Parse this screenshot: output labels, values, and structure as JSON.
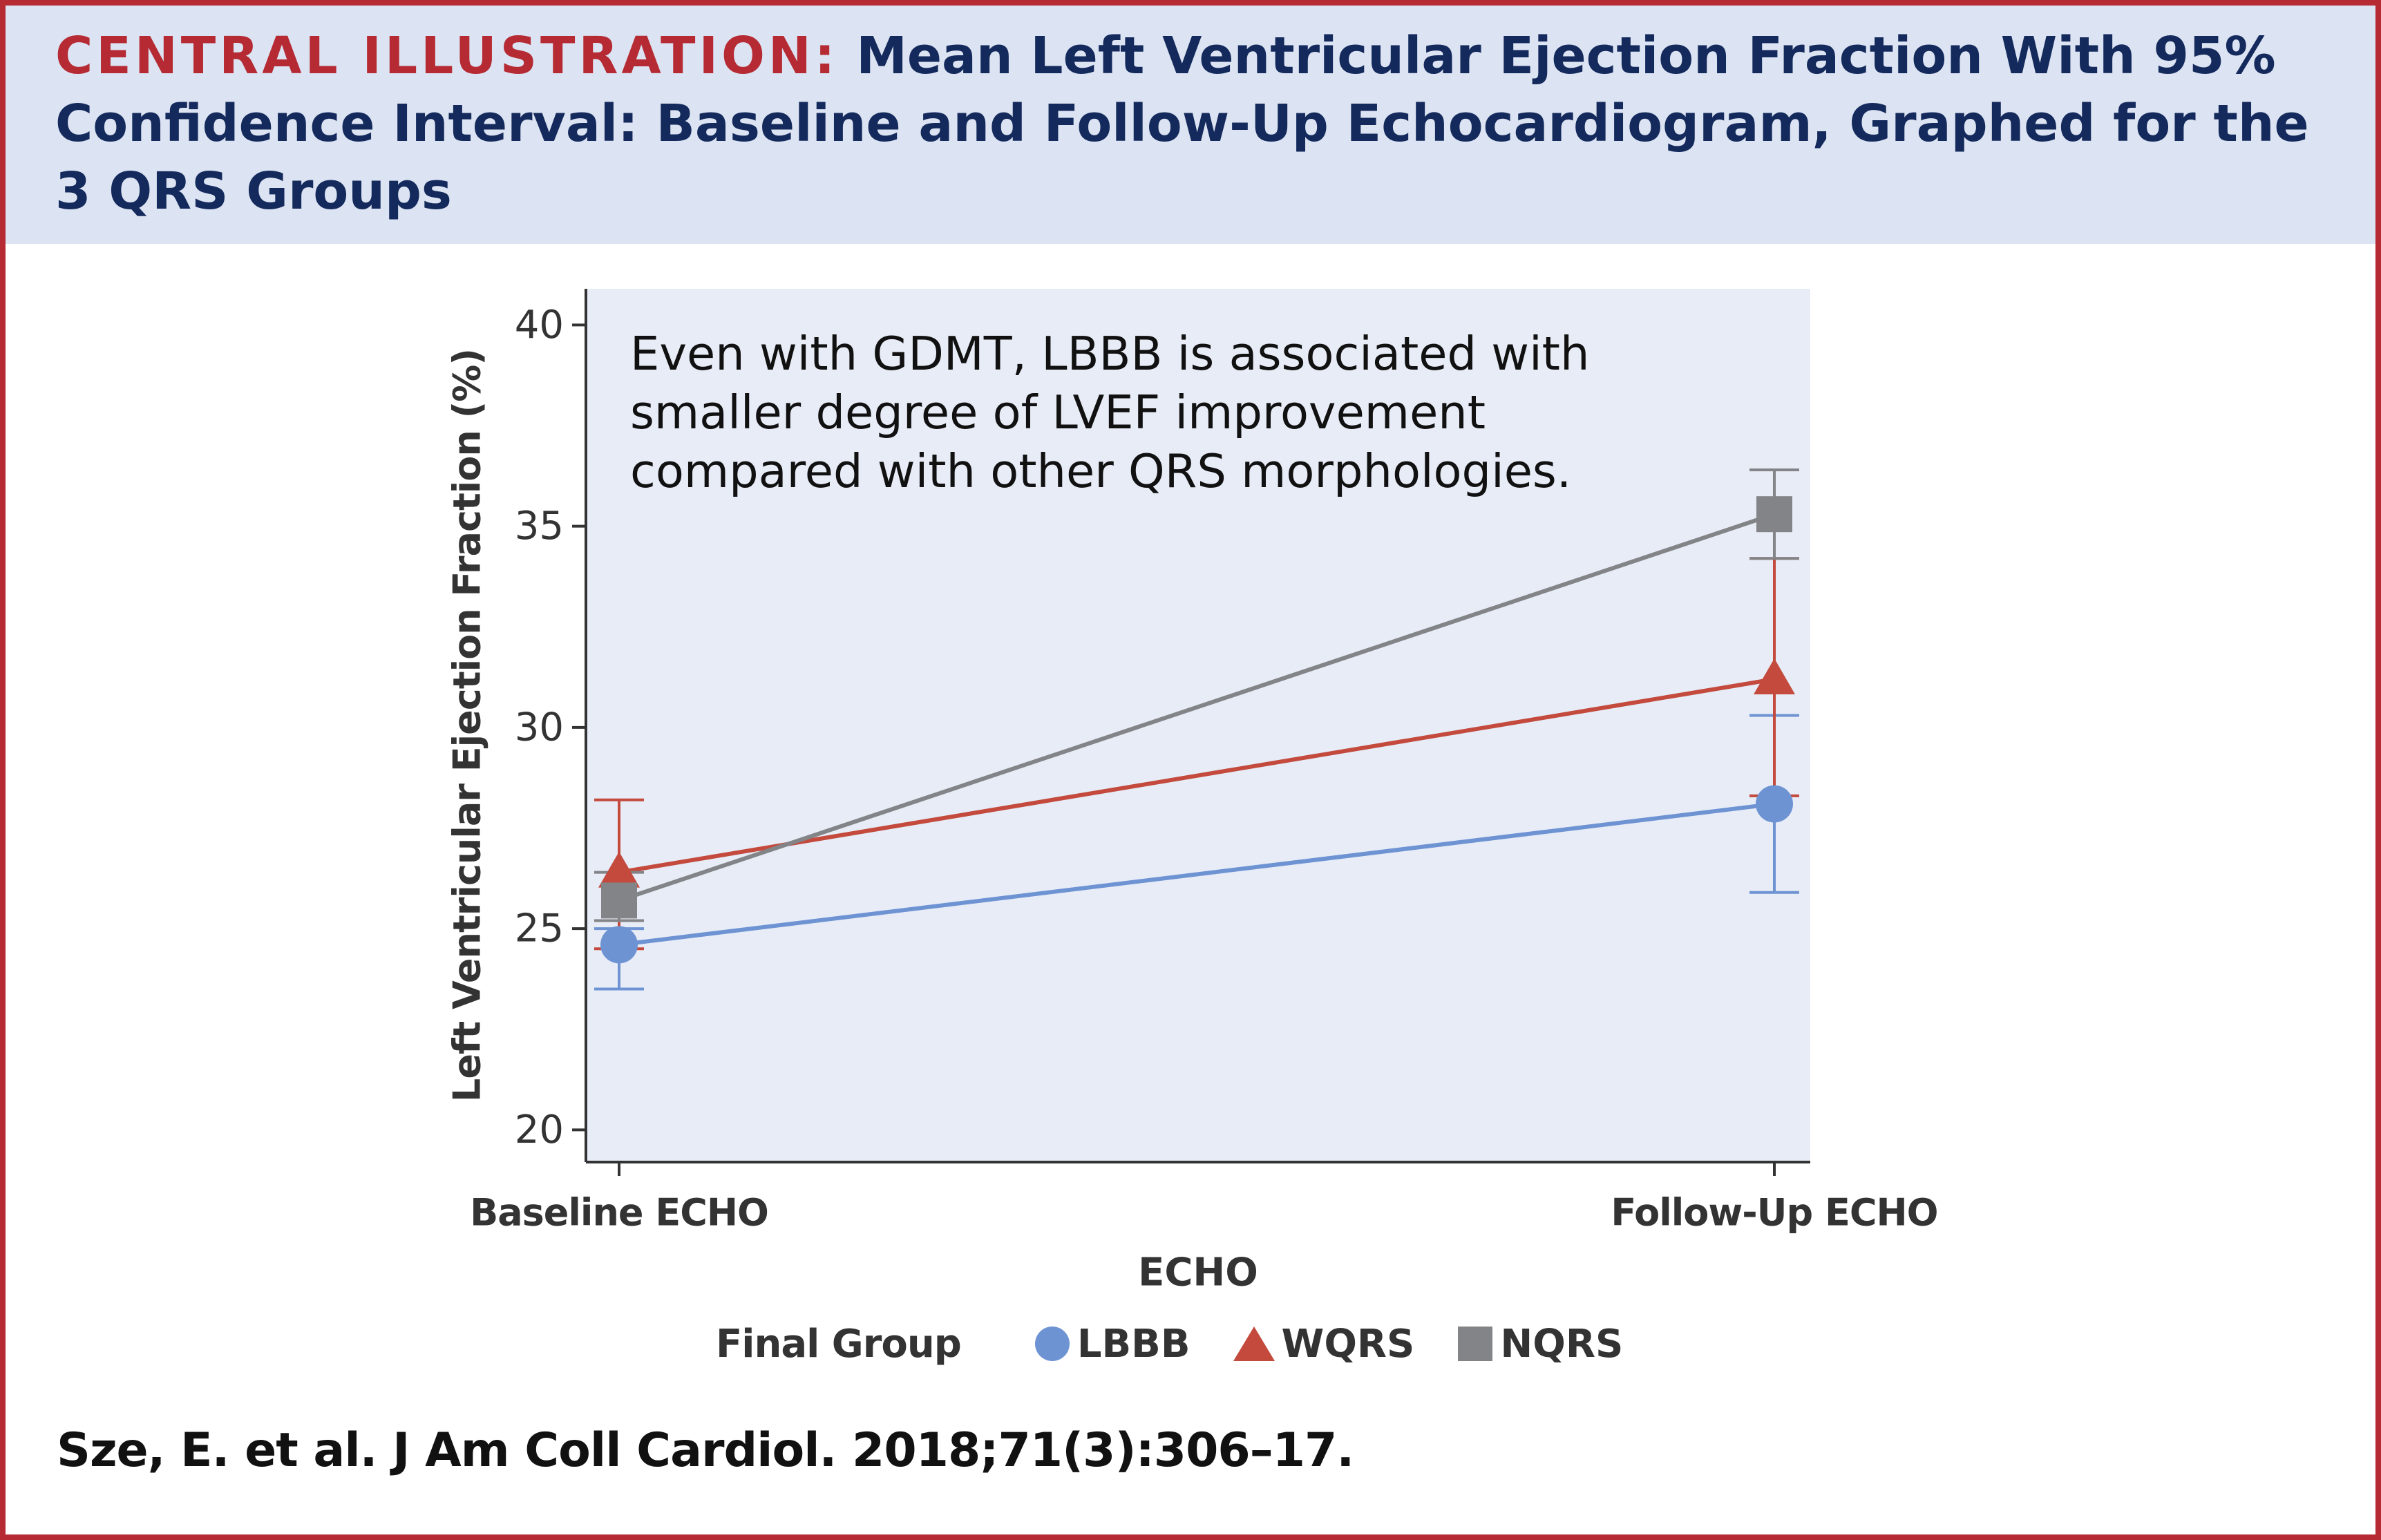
{
  "header": {
    "kicker": "CENTRAL ILLUSTRATION:",
    "title": "Mean Left Ventricular Ejection Fraction With 95% Confidence Interval: Baseline and Follow-Up Echocardiogram, Graphed for the 3 QRS Groups"
  },
  "citation": "Sze, E. et al. J Am Coll Cardiol. 2018;71(3):306–17.",
  "colors": {
    "accent_red": "#b52a33",
    "header_bg": "#dce3f2",
    "title_navy": "#142a5c",
    "plot_bg": "#e7ecf7"
  },
  "chart_data": {
    "type": "line",
    "annotation": "Even with GDMT, LBBB is associated with smaller degree of LVEF improvement compared with other QRS morphologies.",
    "xlabel": "ECHO",
    "ylabel": "Left Ventricular Ejection Fraction (%)",
    "categories": [
      "Baseline ECHO",
      "Follow-Up ECHO"
    ],
    "ylim": [
      19.2,
      40.9
    ],
    "yticks": [
      20,
      25,
      30,
      35,
      40
    ],
    "grid": false,
    "legend_title": "Final Group",
    "legend_position": "bottom",
    "series": [
      {
        "name": "LBBB",
        "marker": "circle",
        "color": "#6e93d3",
        "values": [
          24.6,
          28.1
        ],
        "ci_low": [
          23.5,
          25.9
        ],
        "ci_high": [
          25.0,
          30.3
        ]
      },
      {
        "name": "WQRS",
        "marker": "triangle",
        "color": "#c34a3d",
        "values": [
          26.4,
          31.2
        ],
        "ci_low": [
          24.5,
          28.3
        ],
        "ci_high": [
          28.2,
          34.2
        ]
      },
      {
        "name": "NQRS",
        "marker": "square",
        "color": "#838487",
        "values": [
          25.7,
          35.3
        ],
        "ci_low": [
          25.2,
          34.2
        ],
        "ci_high": [
          26.4,
          36.4
        ]
      }
    ]
  }
}
